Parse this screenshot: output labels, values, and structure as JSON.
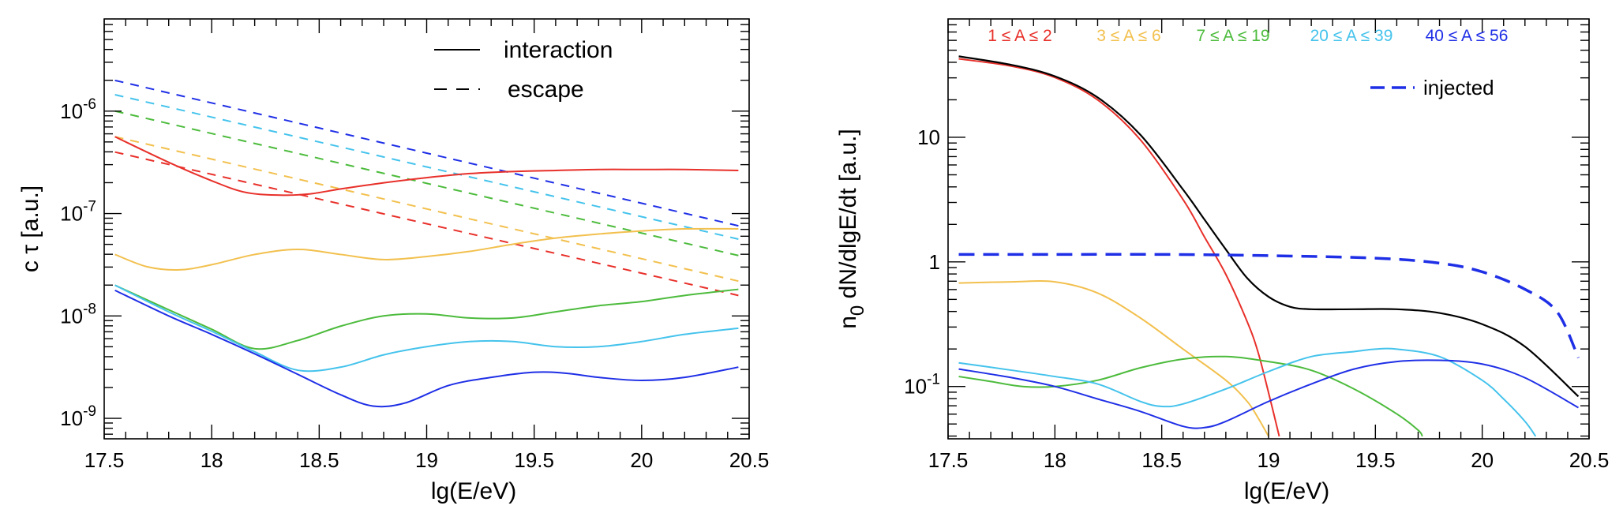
{
  "chart_data": [
    {
      "type": "line",
      "name": "timescales",
      "xlabel": "lg(E/eV)",
      "ylabel": "c τ  [a.u.]",
      "xlim": [
        17.5,
        20.5
      ],
      "ylim_log10": [
        -9.2,
        -5.1
      ],
      "yscale": "log",
      "x_ticks": [
        "17.5",
        "18",
        "18.5",
        "19",
        "19.5",
        "20",
        "20.5"
      ],
      "y_ticks": [
        {
          "base": "10",
          "exp": "-9",
          "log10": -9
        },
        {
          "base": "10",
          "exp": "-8",
          "log10": -8
        },
        {
          "base": "10",
          "exp": "-7",
          "log10": -7
        },
        {
          "base": "10",
          "exp": "-6",
          "log10": -6
        }
      ],
      "legend": [
        {
          "label": "interaction",
          "style": "solid"
        },
        {
          "label": "escape",
          "style": "dashed"
        }
      ],
      "series": [
        {
          "name": "escape 1≤A≤2",
          "color": "#e8302a",
          "dash": true,
          "x": [
            17.55,
            20.45
          ],
          "log10_y": [
            -6.4,
            -7.8
          ]
        },
        {
          "name": "escape 3≤A≤6",
          "color": "#f2c04e",
          "dash": true,
          "x": [
            17.55,
            20.45
          ],
          "log10_y": [
            -6.25,
            -7.66
          ]
        },
        {
          "name": "escape 7≤A≤19",
          "color": "#4cbb3c",
          "dash": true,
          "x": [
            17.55,
            20.45
          ],
          "log10_y": [
            -6.0,
            -7.41
          ]
        },
        {
          "name": "escape 20≤A≤39",
          "color": "#45c3ec",
          "dash": true,
          "x": [
            17.55,
            20.45
          ],
          "log10_y": [
            -5.84,
            -7.25
          ]
        },
        {
          "name": "escape 40≤A≤56",
          "color": "#1f2fe6",
          "dash": true,
          "x": [
            17.55,
            20.45
          ],
          "log10_y": [
            -5.7,
            -7.12
          ]
        },
        {
          "name": "interaction 1≤A≤2",
          "color": "#e8302a",
          "dash": false,
          "x": [
            17.55,
            17.8,
            18.0,
            18.15,
            18.3,
            18.45,
            18.6,
            18.8,
            19.0,
            19.2,
            19.4,
            19.6,
            19.8,
            20.0,
            20.2,
            20.45
          ],
          "log10_y": [
            -6.25,
            -6.5,
            -6.68,
            -6.79,
            -6.82,
            -6.81,
            -6.76,
            -6.7,
            -6.65,
            -6.61,
            -6.59,
            -6.58,
            -6.57,
            -6.57,
            -6.57,
            -6.58
          ]
        },
        {
          "name": "interaction 3≤A≤6",
          "color": "#f2c04e",
          "dash": false,
          "x": [
            17.55,
            17.7,
            17.85,
            18.0,
            18.2,
            18.4,
            18.6,
            18.8,
            19.0,
            19.2,
            19.4,
            19.6,
            19.8,
            20.0,
            20.2,
            20.45
          ],
          "log10_y": [
            -7.4,
            -7.52,
            -7.55,
            -7.5,
            -7.4,
            -7.35,
            -7.4,
            -7.45,
            -7.42,
            -7.37,
            -7.3,
            -7.24,
            -7.2,
            -7.17,
            -7.15,
            -7.15
          ]
        },
        {
          "name": "interaction 7≤A≤19",
          "color": "#4cbb3c",
          "dash": false,
          "x": [
            17.55,
            17.8,
            18.0,
            18.2,
            18.4,
            18.6,
            18.8,
            19.0,
            19.2,
            19.4,
            19.6,
            19.8,
            20.0,
            20.2,
            20.45
          ],
          "log10_y": [
            -7.7,
            -7.94,
            -8.13,
            -8.32,
            -8.24,
            -8.1,
            -8.0,
            -7.98,
            -8.02,
            -8.02,
            -7.96,
            -7.9,
            -7.86,
            -7.8,
            -7.74
          ]
        },
        {
          "name": "interaction 20≤A≤39",
          "color": "#45c3ec",
          "dash": false,
          "x": [
            17.55,
            17.8,
            18.0,
            18.2,
            18.4,
            18.6,
            18.8,
            19.0,
            19.2,
            19.4,
            19.6,
            19.8,
            20.0,
            20.2,
            20.45
          ],
          "log10_y": [
            -7.7,
            -7.96,
            -8.15,
            -8.35,
            -8.53,
            -8.5,
            -8.38,
            -8.3,
            -8.25,
            -8.25,
            -8.3,
            -8.3,
            -8.25,
            -8.18,
            -8.12
          ]
        },
        {
          "name": "interaction 40≤A≤56",
          "color": "#1f2fe6",
          "dash": false,
          "x": [
            17.55,
            17.8,
            18.0,
            18.2,
            18.4,
            18.6,
            18.75,
            18.9,
            19.1,
            19.3,
            19.5,
            19.65,
            19.8,
            20.0,
            20.2,
            20.45
          ],
          "log10_y": [
            -7.75,
            -8.0,
            -8.18,
            -8.37,
            -8.57,
            -8.77,
            -8.88,
            -8.85,
            -8.68,
            -8.6,
            -8.55,
            -8.56,
            -8.6,
            -8.63,
            -8.6,
            -8.5
          ]
        }
      ]
    },
    {
      "type": "line",
      "name": "spectra",
      "xlabel": "lg(E/eV)",
      "ylabel": "n",
      "ylabel_sub": "0",
      "ylabel_rest": " dN/dlgE/dt [a.u.]",
      "xlim": [
        17.5,
        20.5
      ],
      "ylim_log10": [
        -1.42,
        1.95
      ],
      "yscale": "log",
      "x_ticks": [
        "17.5",
        "18",
        "18.5",
        "19",
        "19.5",
        "20",
        "20.5"
      ],
      "y_ticks": [
        {
          "label": "10",
          "exp": "-1",
          "log10": -1
        },
        {
          "label": "1",
          "exp": "",
          "log10": 0
        },
        {
          "label": "10",
          "exp": "",
          "log10": 1
        }
      ],
      "group_labels": [
        {
          "label": "1 ≤ A ≤ 2",
          "color": "#e8302a"
        },
        {
          "label": "3 ≤ A ≤ 6",
          "color": "#f2c04e"
        },
        {
          "label": "7 ≤ A ≤ 19",
          "color": "#4cbb3c"
        },
        {
          "label": "20 ≤ A ≤ 39",
          "color": "#45c3ec"
        },
        {
          "label": "40 ≤ A ≤ 56",
          "color": "#1f2fe6"
        }
      ],
      "legend": [
        {
          "label": "injected",
          "style": "dashed",
          "color": "#1f2fe6"
        }
      ],
      "series": [
        {
          "name": "1≤A≤2",
          "color": "#e8302a",
          "dash": false,
          "width": 2,
          "x": [
            17.55,
            17.8,
            18.0,
            18.2,
            18.4,
            18.6,
            18.7,
            18.8,
            18.9,
            18.95,
            19.0,
            19.05
          ],
          "log10_y": [
            1.63,
            1.57,
            1.48,
            1.3,
            0.98,
            0.5,
            0.2,
            -0.1,
            -0.48,
            -0.72,
            -1.05,
            -1.4
          ]
        },
        {
          "name": "3≤A≤6",
          "color": "#f2c04e",
          "dash": false,
          "width": 2,
          "x": [
            17.55,
            17.8,
            18.0,
            18.2,
            18.4,
            18.6,
            18.8,
            18.9,
            18.95,
            19.0
          ],
          "log10_y": [
            -0.17,
            -0.16,
            -0.16,
            -0.25,
            -0.45,
            -0.7,
            -0.95,
            -1.12,
            -1.25,
            -1.4
          ]
        },
        {
          "name": "7≤A≤19",
          "color": "#4cbb3c",
          "dash": false,
          "width": 2,
          "x": [
            17.55,
            17.7,
            17.85,
            18.0,
            18.2,
            18.4,
            18.6,
            18.8,
            19.0,
            19.2,
            19.4,
            19.6,
            19.7,
            19.72
          ],
          "log10_y": [
            -0.92,
            -0.96,
            -1.0,
            -1.0,
            -0.95,
            -0.85,
            -0.78,
            -0.76,
            -0.8,
            -0.87,
            -1.02,
            -1.22,
            -1.35,
            -1.4
          ]
        },
        {
          "name": "20≤A≤39",
          "color": "#45c3ec",
          "dash": false,
          "width": 2,
          "x": [
            17.55,
            17.8,
            18.0,
            18.2,
            18.4,
            18.5,
            18.6,
            18.8,
            19.0,
            19.2,
            19.4,
            19.5,
            19.6,
            19.8,
            20.0,
            20.1,
            20.2,
            20.25
          ],
          "log10_y": [
            -0.81,
            -0.87,
            -0.92,
            -0.98,
            -1.12,
            -1.16,
            -1.14,
            -1.02,
            -0.88,
            -0.76,
            -0.72,
            -0.7,
            -0.7,
            -0.76,
            -0.95,
            -1.1,
            -1.28,
            -1.4
          ]
        },
        {
          "name": "40≤A≤56",
          "color": "#1f2fe6",
          "dash": false,
          "width": 2,
          "x": [
            17.55,
            17.8,
            18.0,
            18.2,
            18.4,
            18.6,
            18.7,
            18.8,
            19.0,
            19.2,
            19.4,
            19.6,
            19.8,
            20.0,
            20.2,
            20.45
          ],
          "log10_y": [
            -0.86,
            -0.93,
            -1.0,
            -1.1,
            -1.2,
            -1.32,
            -1.33,
            -1.28,
            -1.12,
            -0.98,
            -0.86,
            -0.8,
            -0.79,
            -0.82,
            -0.93,
            -1.17
          ]
        },
        {
          "name": "total",
          "color": "#000000",
          "dash": false,
          "width": 2.2,
          "x": [
            17.55,
            17.8,
            18.0,
            18.2,
            18.4,
            18.6,
            18.7,
            18.8,
            18.9,
            19.0,
            19.1,
            19.2,
            19.4,
            19.6,
            19.8,
            20.0,
            20.2,
            20.45
          ],
          "log10_y": [
            1.65,
            1.58,
            1.49,
            1.32,
            1.02,
            0.58,
            0.34,
            0.1,
            -0.13,
            -0.28,
            -0.36,
            -0.38,
            -0.38,
            -0.38,
            -0.41,
            -0.5,
            -0.68,
            -1.08
          ]
        },
        {
          "name": "injected",
          "color": "#1f2fe6",
          "dash": true,
          "width": 3.5,
          "x": [
            17.55,
            18.0,
            18.5,
            19.0,
            19.5,
            19.8,
            20.0,
            20.2,
            20.35,
            20.45
          ],
          "log10_y": [
            0.06,
            0.06,
            0.06,
            0.05,
            0.03,
            -0.01,
            -0.08,
            -0.22,
            -0.4,
            -0.77
          ]
        }
      ]
    }
  ]
}
